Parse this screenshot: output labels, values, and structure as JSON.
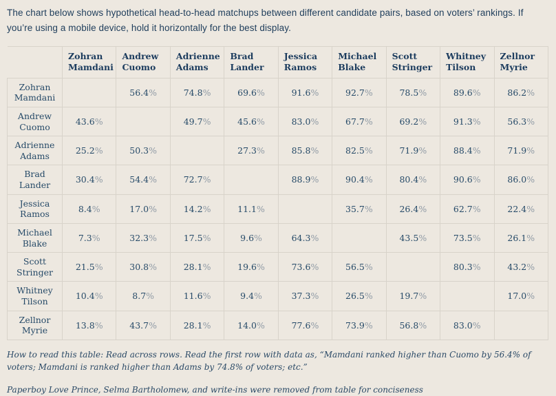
{
  "intro": {
    "text": "The chart below shows hypothetical head-to-head matchups between different candidate pairs, based on voters’ rankings. If you’re using a mobile device, hold it horizontally for the best display."
  },
  "colors": {
    "background": "#EDE8E0",
    "text_navy": "#1E3D5B",
    "value_navy": "#264A68",
    "percent_sign_gray": "#8E99A4",
    "border": "#D8D3CA"
  },
  "table": {
    "columns": [
      "Zohran Mamdani",
      "Andrew Cuomo",
      "Adrienne Adams",
      "Brad Lander",
      "Jessica Ramos",
      "Michael Blake",
      "Scott Stringer",
      "Whitney Tilson",
      "Zellnor Myrie"
    ],
    "rows": [
      {
        "label": "Zohran Mamdani",
        "label_lines": [
          "Zohran",
          "Mamdani"
        ],
        "values": [
          "",
          "56.4%",
          "74.8%",
          "69.6%",
          "91.6%",
          "92.7%",
          "78.5%",
          "89.6%",
          "86.2%"
        ]
      },
      {
        "label": "Andrew Cuomo",
        "label_lines": [
          "Andrew",
          "Cuomo"
        ],
        "values": [
          "43.6%",
          "",
          "49.7%",
          "45.6%",
          "83.0%",
          "67.7%",
          "69.2%",
          "91.3%",
          "56.3%"
        ]
      },
      {
        "label": "Adrienne Adams",
        "label_lines": [
          "Adrienne",
          "Adams"
        ],
        "values": [
          "25.2%",
          "50.3%",
          "",
          "27.3%",
          "85.8%",
          "82.5%",
          "71.9%",
          "88.4%",
          "71.9%"
        ]
      },
      {
        "label": "Brad Lander",
        "label_lines": [
          "Brad Lander"
        ],
        "values": [
          "30.4%",
          "54.4%",
          "72.7%",
          "",
          "88.9%",
          "90.4%",
          "80.4%",
          "90.6%",
          "86.0%"
        ]
      },
      {
        "label": "Jessica Ramos",
        "label_lines": [
          "Jessica",
          "Ramos"
        ],
        "values": [
          "8.4%",
          "17.0%",
          "14.2%",
          "11.1%",
          "",
          "35.7%",
          "26.4%",
          "62.7%",
          "22.4%"
        ]
      },
      {
        "label": "Michael Blake",
        "label_lines": [
          "Michael",
          "Blake"
        ],
        "values": [
          "7.3%",
          "32.3%",
          "17.5%",
          "9.6%",
          "64.3%",
          "",
          "43.5%",
          "73.5%",
          "26.1%"
        ]
      },
      {
        "label": "Scott Stringer",
        "label_lines": [
          "Scott",
          "Stringer"
        ],
        "values": [
          "21.5%",
          "30.8%",
          "28.1%",
          "19.6%",
          "73.6%",
          "56.5%",
          "",
          "80.3%",
          "43.2%"
        ]
      },
      {
        "label": "Whitney Tilson",
        "label_lines": [
          "Whitney",
          "Tilson"
        ],
        "values": [
          "10.4%",
          "8.7%",
          "11.6%",
          "9.4%",
          "37.3%",
          "26.5%",
          "19.7%",
          "",
          "17.0%"
        ]
      },
      {
        "label": "Zellnor Myrie",
        "label_lines": [
          "Zellnor",
          "Myrie"
        ],
        "values": [
          "13.8%",
          "43.7%",
          "28.1%",
          "14.0%",
          "77.6%",
          "73.9%",
          "56.8%",
          "83.0%",
          ""
        ]
      }
    ]
  },
  "chart_data": {
    "type": "table",
    "title": "Hypothetical head-to-head matchups between candidate pairs, based on voters’ rankings",
    "unit": "percent of voters ranking row candidate higher than column candidate",
    "candidates": [
      "Zohran Mamdani",
      "Andrew Cuomo",
      "Adrienne Adams",
      "Brad Lander",
      "Jessica Ramos",
      "Michael Blake",
      "Scott Stringer",
      "Whitney Tilson",
      "Zellnor Myrie"
    ],
    "matrix": [
      [
        null,
        56.4,
        74.8,
        69.6,
        91.6,
        92.7,
        78.5,
        89.6,
        86.2
      ],
      [
        43.6,
        null,
        49.7,
        45.6,
        83.0,
        67.7,
        69.2,
        91.3,
        56.3
      ],
      [
        25.2,
        50.3,
        null,
        27.3,
        85.8,
        82.5,
        71.9,
        88.4,
        71.9
      ],
      [
        30.4,
        54.4,
        72.7,
        null,
        88.9,
        90.4,
        80.4,
        90.6,
        86.0
      ],
      [
        8.4,
        17.0,
        14.2,
        11.1,
        null,
        35.7,
        26.4,
        62.7,
        22.4
      ],
      [
        7.3,
        32.3,
        17.5,
        9.6,
        64.3,
        null,
        43.5,
        73.5,
        26.1
      ],
      [
        21.5,
        30.8,
        28.1,
        19.6,
        73.6,
        56.5,
        null,
        80.3,
        43.2
      ],
      [
        10.4,
        8.7,
        11.6,
        9.4,
        37.3,
        26.5,
        19.7,
        null,
        17.0
      ],
      [
        13.8,
        43.7,
        28.1,
        14.0,
        77.6,
        73.9,
        56.8,
        83.0,
        null
      ]
    ]
  },
  "footnotes": {
    "how_to": "How to read this table: Read across rows. Read the first row with data as, “Mamdani ranked higher than Cuomo by 56.4% of voters; Mamdani is ranked higher than Adams by 74.8% of voters; etc.”",
    "removed": "Paperboy Love Prince, Selma Bartholomew, and write-ins were removed from table for conciseness"
  }
}
